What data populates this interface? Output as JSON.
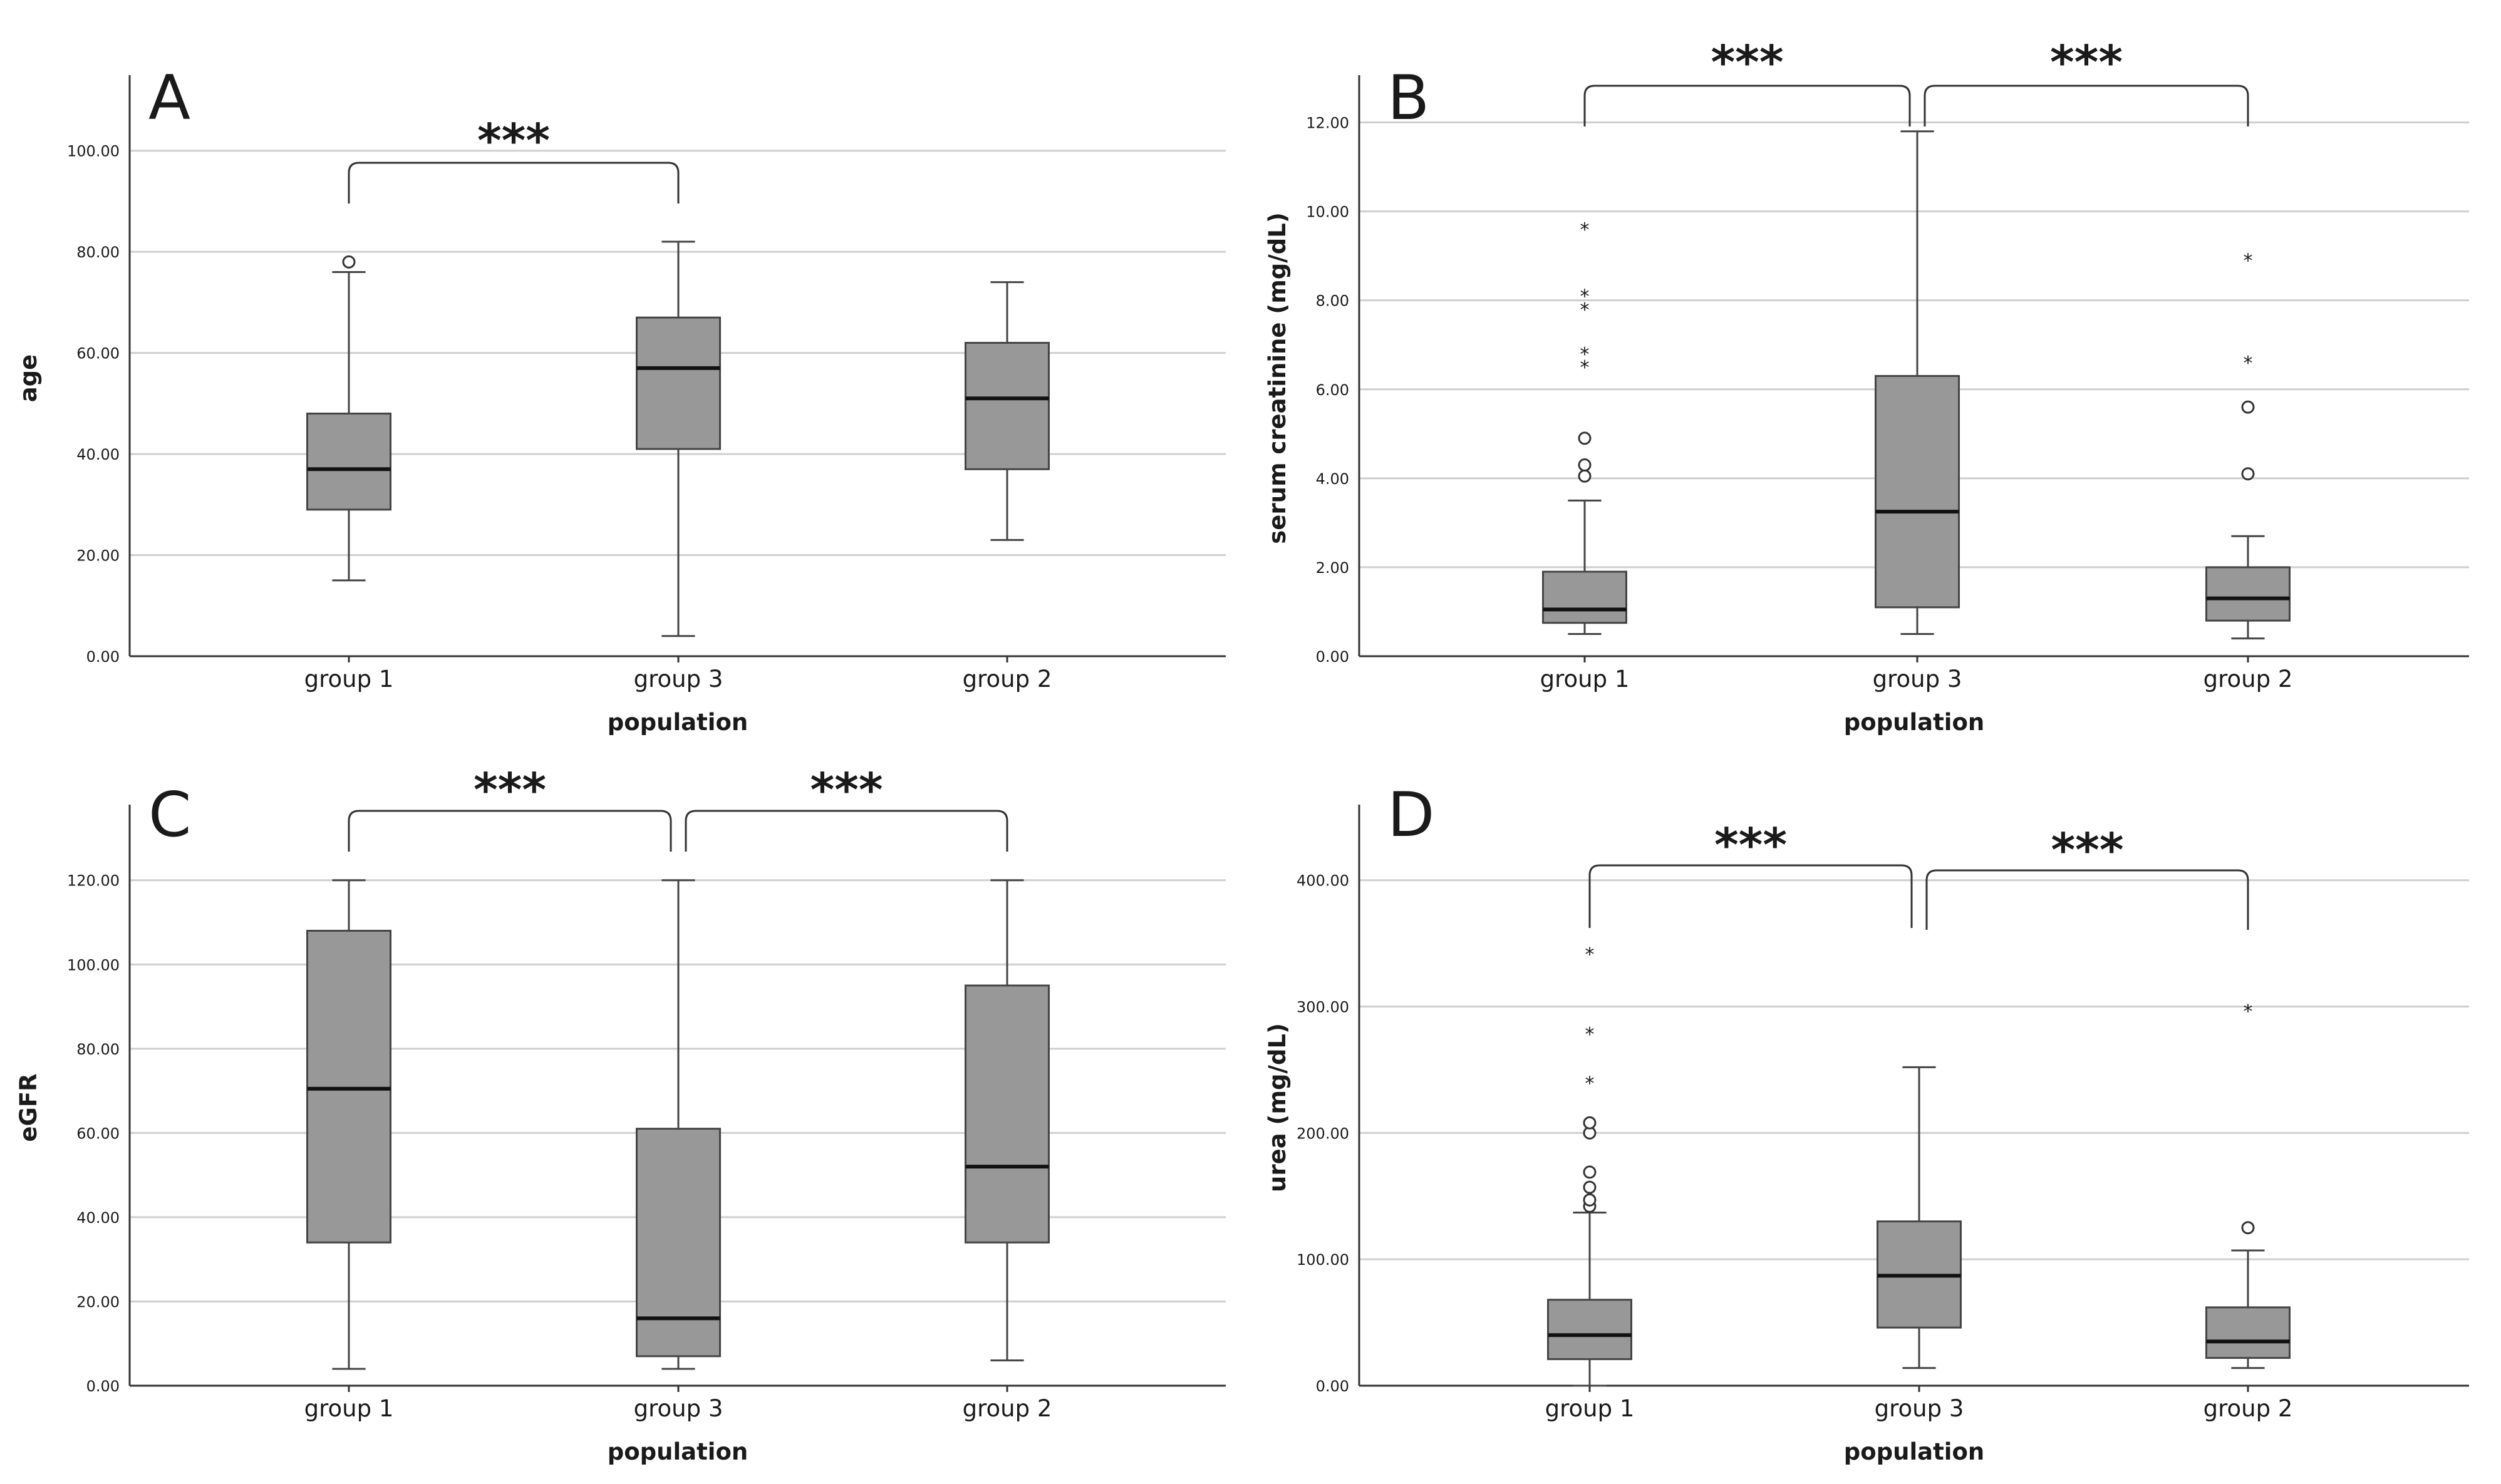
{
  "figure": {
    "colors": {
      "box_fill": "#989898",
      "box_stroke": "#444444",
      "grid": "#cfcfcf",
      "text": "#1a1a1a"
    }
  },
  "chart_data": [
    {
      "type": "box",
      "panel": "A",
      "xlabel": "population",
      "ylabel": "age",
      "categories": [
        "group 1",
        "group 3",
        "group 2"
      ],
      "ylim": [
        0,
        110
      ],
      "yticks": [
        0,
        20,
        40,
        60,
        80,
        100
      ],
      "ytick_labels": [
        "0.00",
        "20.00",
        "40.00",
        "60.00",
        "80.00",
        "100.00"
      ],
      "boxes": [
        {
          "group": "group 1",
          "whisker_low": 15,
          "q1": 29,
          "median": 37,
          "q3": 48,
          "whisker_high": 76,
          "outliers": [
            {
              "value": 78,
              "kind": "circle"
            }
          ]
        },
        {
          "group": "group 3",
          "whisker_low": 4,
          "q1": 41,
          "median": 57,
          "q3": 67,
          "whisker_high": 82,
          "outliers": []
        },
        {
          "group": "group 2",
          "whisker_low": 23,
          "q1": 37,
          "median": 51,
          "q3": 62,
          "whisker_high": 74,
          "outliers": []
        }
      ],
      "significance": [
        {
          "from": "group 1",
          "to": "group 3",
          "label": "***"
        }
      ]
    },
    {
      "type": "box",
      "panel": "B",
      "xlabel": "population",
      "ylabel": "serum creatinine (mg/dL)",
      "categories": [
        "group 1",
        "group 3",
        "group 2"
      ],
      "ylim": [
        0,
        12.5
      ],
      "yticks": [
        0,
        2,
        4,
        6,
        8,
        10,
        12
      ],
      "ytick_labels": [
        "0.00",
        "2.00",
        "4.00",
        "6.00",
        "8.00",
        "10.00",
        "12.00"
      ],
      "boxes": [
        {
          "group": "group 1",
          "whisker_low": 0.5,
          "q1": 0.75,
          "median": 1.05,
          "q3": 1.9,
          "whisker_high": 3.5,
          "outliers": [
            {
              "value": 4.05,
              "kind": "circle"
            },
            {
              "value": 4.3,
              "kind": "circle"
            },
            {
              "value": 4.9,
              "kind": "circle"
            },
            {
              "value": 6.6,
              "kind": "star"
            },
            {
              "value": 6.9,
              "kind": "star"
            },
            {
              "value": 7.9,
              "kind": "star"
            },
            {
              "value": 8.2,
              "kind": "star"
            },
            {
              "value": 9.7,
              "kind": "star"
            }
          ]
        },
        {
          "group": "group 3",
          "whisker_low": 0.5,
          "q1": 1.1,
          "median": 3.25,
          "q3": 6.3,
          "whisker_high": 11.8,
          "outliers": []
        },
        {
          "group": "group 2",
          "whisker_low": 0.4,
          "q1": 0.8,
          "median": 1.3,
          "q3": 2.0,
          "whisker_high": 2.7,
          "outliers": [
            {
              "value": 4.1,
              "kind": "circle"
            },
            {
              "value": 5.6,
              "kind": "circle"
            },
            {
              "value": 6.7,
              "kind": "star"
            },
            {
              "value": 9.0,
              "kind": "star"
            }
          ]
        }
      ],
      "significance": [
        {
          "from": "group 1",
          "to": "group 3",
          "label": "***"
        },
        {
          "from": "group 3",
          "to": "group 2",
          "label": "***"
        }
      ]
    },
    {
      "type": "box",
      "panel": "C",
      "xlabel": "population",
      "ylabel": "eGFR",
      "categories": [
        "group 1",
        "group 3",
        "group 2"
      ],
      "ylim": [
        0,
        132
      ],
      "yticks": [
        0,
        20,
        40,
        60,
        80,
        100,
        120
      ],
      "ytick_labels": [
        "0.00",
        "20.00",
        "40.00",
        "60.00",
        "80.00",
        "100.00",
        "120.00"
      ],
      "boxes": [
        {
          "group": "group 1",
          "whisker_low": 4,
          "q1": 34,
          "median": 70.5,
          "q3": 108,
          "whisker_high": 120,
          "outliers": []
        },
        {
          "group": "group 3",
          "whisker_low": 4,
          "q1": 7,
          "median": 16,
          "q3": 61,
          "whisker_high": 120,
          "outliers": []
        },
        {
          "group": "group 2",
          "whisker_low": 6,
          "q1": 34,
          "median": 52,
          "q3": 95,
          "whisker_high": 120,
          "outliers": []
        }
      ],
      "significance": [
        {
          "from": "group 1",
          "to": "group 3",
          "label": "***"
        },
        {
          "from": "group 3",
          "to": "group 2",
          "label": "***"
        }
      ]
    },
    {
      "type": "box",
      "panel": "D",
      "xlabel": "population",
      "ylabel": "urea (mg/dL)",
      "categories": [
        "group 1",
        "group 3",
        "group 2"
      ],
      "ylim": [
        0,
        440
      ],
      "yticks": [
        0,
        100,
        200,
        300,
        400
      ],
      "ytick_labels": [
        "0.00",
        "100.00",
        "200.00",
        "300.00",
        "400.00"
      ],
      "boxes": [
        {
          "group": "group 1",
          "whisker_low": 0,
          "q1": 21,
          "median": 40,
          "q3": 68,
          "whisker_high": 137,
          "outliers": [
            {
              "value": 142,
              "kind": "circle"
            },
            {
              "value": 147,
              "kind": "circle"
            },
            {
              "value": 157,
              "kind": "circle"
            },
            {
              "value": 169,
              "kind": "circle"
            },
            {
              "value": 200,
              "kind": "circle"
            },
            {
              "value": 208,
              "kind": "circle"
            },
            {
              "value": 243,
              "kind": "star"
            },
            {
              "value": 282,
              "kind": "star"
            },
            {
              "value": 345,
              "kind": "star"
            }
          ]
        },
        {
          "group": "group 3",
          "whisker_low": 14,
          "q1": 46,
          "median": 87,
          "q3": 130,
          "whisker_high": 252,
          "outliers": []
        },
        {
          "group": "group 2",
          "whisker_low": 14,
          "q1": 22,
          "median": 35,
          "q3": 62,
          "whisker_high": 107,
          "outliers": [
            {
              "value": 125,
              "kind": "circle"
            },
            {
              "value": 300,
              "kind": "star"
            }
          ]
        }
      ],
      "significance": [
        {
          "from": "group 1",
          "to": "group 3",
          "label": "***"
        },
        {
          "from": "group 3",
          "to": "group 2",
          "label": "***"
        }
      ]
    }
  ]
}
